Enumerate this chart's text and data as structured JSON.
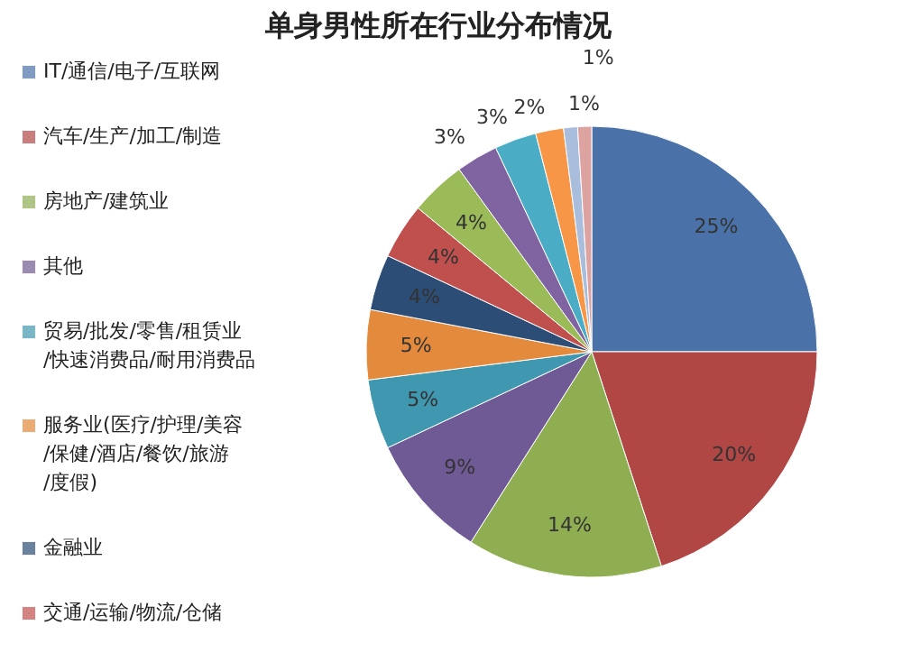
{
  "chart_data": {
    "type": "pie",
    "title": "单身男性所在行业分布情况",
    "categories": [
      "IT/通信/电子/互联网",
      "汽车/生产/加工/制造",
      "房地产/建筑业",
      "其他",
      "贸易/批发/零售/租赁业/快速消费品/耐用消费品",
      "服务业(医疗/护理/美容/保健/酒店/餐饮/旅游/度假)",
      "金融业",
      "交通/运输/物流/仓储",
      null,
      null,
      null,
      null,
      null,
      null
    ],
    "values": [
      25,
      20,
      14,
      9,
      5,
      5,
      4,
      4,
      4,
      3,
      3,
      2,
      1,
      1
    ],
    "value_labels": [
      "25%",
      "20%",
      "14%",
      "9%",
      "5%",
      "5%",
      "4%",
      "4%",
      "4%",
      "3%",
      "3%",
      "2%",
      "1%",
      "1%"
    ],
    "colors": [
      "#4a72a8",
      "#b04745",
      "#8fae52",
      "#6f5a96",
      "#3f97b0",
      "#e38a3c",
      "#2c4d75",
      "#c0504d",
      "#9bbb59",
      "#8064a2",
      "#4bacc6",
      "#f79646",
      "#a9bddc",
      "#dca3a1"
    ],
    "legend": "left"
  }
}
